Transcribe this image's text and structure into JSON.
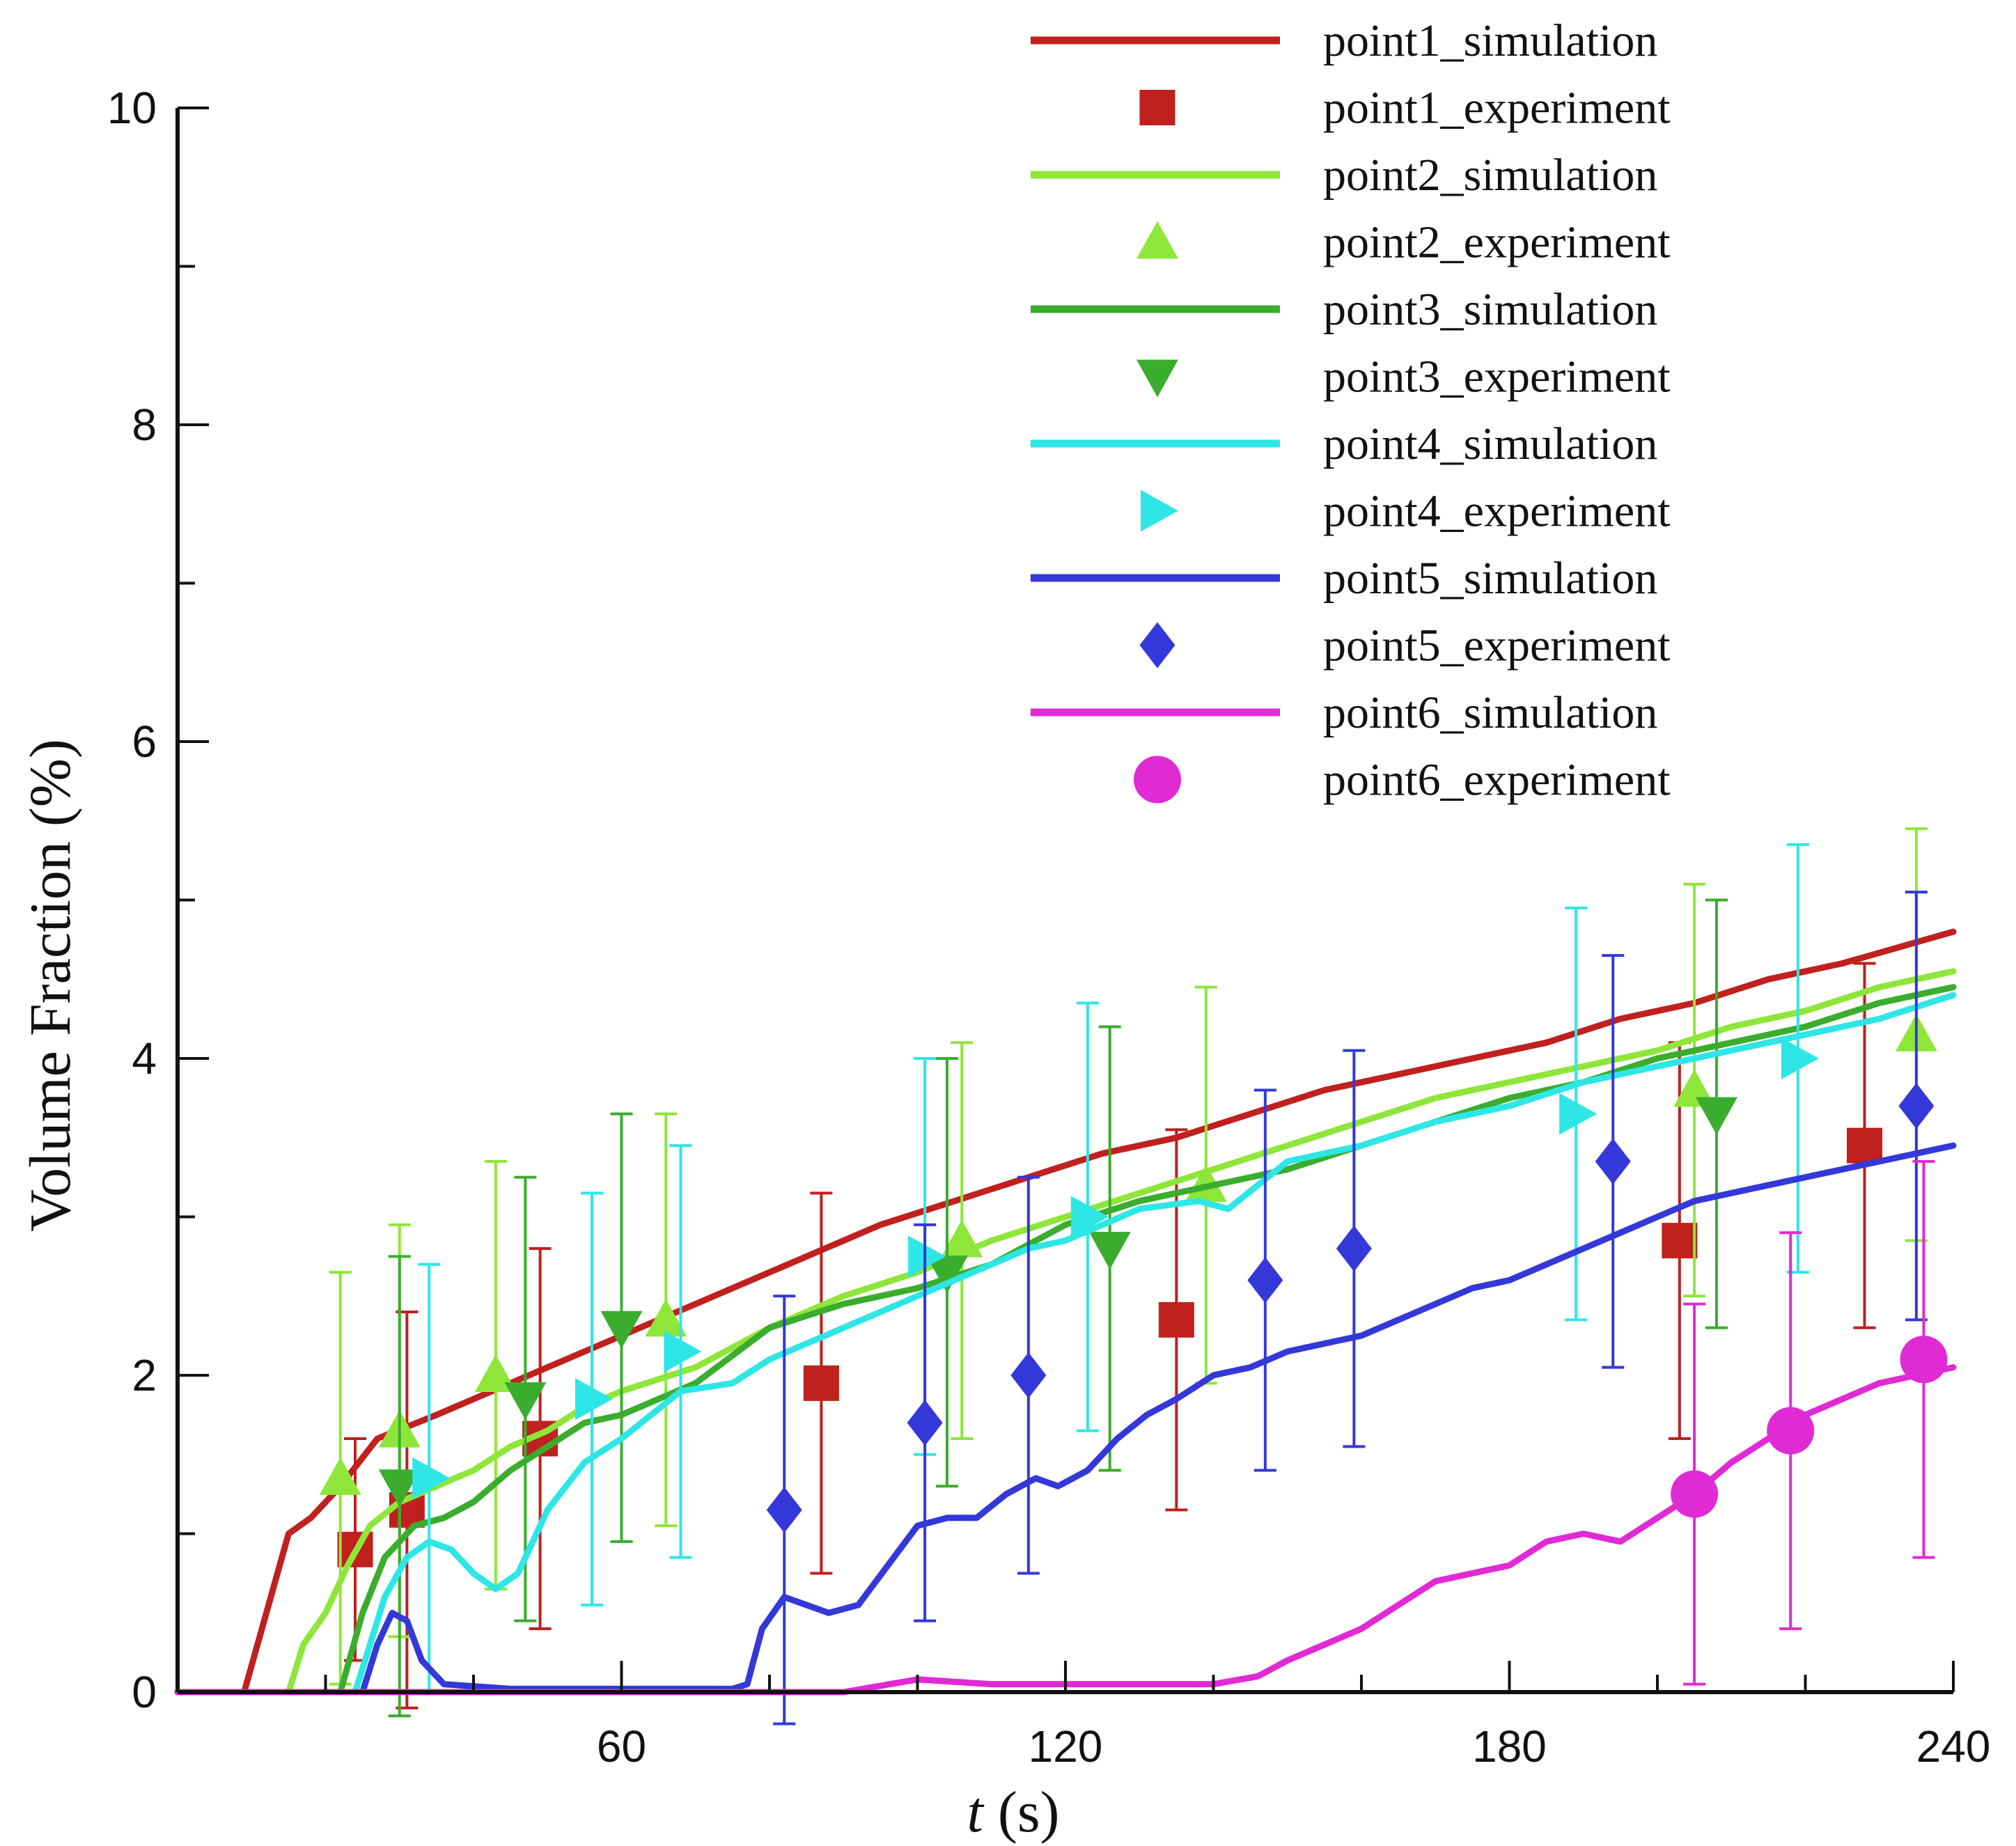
{
  "chart_data": {
    "type": "line",
    "title": "",
    "xlabel_var": "t",
    "xlabel_unit": " (s)",
    "ylabel": "Volume Fraction (%)",
    "xlim": [
      0,
      240
    ],
    "ylim": [
      0,
      10
    ],
    "x_ticks": [
      60,
      120,
      180,
      240
    ],
    "y_ticks": [
      0,
      2,
      4,
      6,
      8,
      10
    ],
    "legend_position": "top-right",
    "series": [
      {
        "name": "point1_simulation",
        "kind": "line",
        "color": "#c0201e",
        "points": [
          [
            0,
            0
          ],
          [
            9,
            0
          ],
          [
            12,
            0.5
          ],
          [
            15,
            1.0
          ],
          [
            18,
            1.1
          ],
          [
            22,
            1.3
          ],
          [
            27,
            1.6
          ],
          [
            35,
            1.75
          ],
          [
            45,
            1.95
          ],
          [
            55,
            2.15
          ],
          [
            65,
            2.35
          ],
          [
            75,
            2.55
          ],
          [
            85,
            2.75
          ],
          [
            95,
            2.95
          ],
          [
            105,
            3.1
          ],
          [
            115,
            3.25
          ],
          [
            125,
            3.4
          ],
          [
            135,
            3.5
          ],
          [
            145,
            3.65
          ],
          [
            155,
            3.8
          ],
          [
            165,
            3.9
          ],
          [
            175,
            4.0
          ],
          [
            185,
            4.1
          ],
          [
            195,
            4.25
          ],
          [
            205,
            4.35
          ],
          [
            215,
            4.5
          ],
          [
            225,
            4.6
          ],
          [
            240,
            4.8
          ]
        ]
      },
      {
        "name": "point1_experiment",
        "kind": "marker",
        "marker": "square",
        "color": "#c0201e",
        "points": [
          [
            24,
            0.9,
            0.7
          ],
          [
            31,
            1.15,
            1.25
          ],
          [
            49,
            1.6,
            1.2
          ],
          [
            87,
            1.95,
            1.2
          ],
          [
            135,
            2.35,
            1.2
          ],
          [
            203,
            2.85,
            1.25
          ],
          [
            228,
            3.45,
            1.15
          ]
        ]
      },
      {
        "name": "point2_simulation",
        "kind": "line",
        "color": "#8ee63a",
        "points": [
          [
            0,
            0
          ],
          [
            15,
            0
          ],
          [
            17,
            0.3
          ],
          [
            20,
            0.5
          ],
          [
            23,
            0.8
          ],
          [
            26,
            1.05
          ],
          [
            30,
            1.2
          ],
          [
            35,
            1.3
          ],
          [
            40,
            1.4
          ],
          [
            45,
            1.55
          ],
          [
            50,
            1.65
          ],
          [
            55,
            1.8
          ],
          [
            60,
            1.9
          ],
          [
            70,
            2.05
          ],
          [
            80,
            2.3
          ],
          [
            90,
            2.5
          ],
          [
            100,
            2.65
          ],
          [
            110,
            2.85
          ],
          [
            120,
            3.0
          ],
          [
            130,
            3.15
          ],
          [
            140,
            3.3
          ],
          [
            150,
            3.45
          ],
          [
            160,
            3.6
          ],
          [
            170,
            3.75
          ],
          [
            180,
            3.85
          ],
          [
            190,
            3.95
          ],
          [
            200,
            4.05
          ],
          [
            210,
            4.2
          ],
          [
            220,
            4.3
          ],
          [
            230,
            4.45
          ],
          [
            240,
            4.55
          ]
        ]
      },
      {
        "name": "point2_experiment",
        "kind": "marker",
        "marker": "triangle-up",
        "color": "#8ee63a",
        "points": [
          [
            22,
            1.35,
            1.3
          ],
          [
            30,
            1.65,
            1.3
          ],
          [
            43,
            2.0,
            1.35
          ],
          [
            66,
            2.35,
            1.3
          ],
          [
            106,
            2.85,
            1.25
          ],
          [
            139,
            3.2,
            1.25
          ],
          [
            205,
            3.8,
            1.3
          ],
          [
            235,
            4.15,
            1.3
          ]
        ]
      },
      {
        "name": "point3_simulation",
        "kind": "line",
        "color": "#3aad2e",
        "points": [
          [
            0,
            0
          ],
          [
            22,
            0
          ],
          [
            25,
            0.5
          ],
          [
            28,
            0.85
          ],
          [
            32,
            1.05
          ],
          [
            36,
            1.1
          ],
          [
            40,
            1.2
          ],
          [
            45,
            1.4
          ],
          [
            50,
            1.55
          ],
          [
            55,
            1.7
          ],
          [
            60,
            1.75
          ],
          [
            65,
            1.85
          ],
          [
            70,
            1.95
          ],
          [
            80,
            2.3
          ],
          [
            90,
            2.45
          ],
          [
            100,
            2.55
          ],
          [
            110,
            2.7
          ],
          [
            120,
            2.95
          ],
          [
            130,
            3.1
          ],
          [
            140,
            3.2
          ],
          [
            150,
            3.3
          ],
          [
            160,
            3.45
          ],
          [
            170,
            3.6
          ],
          [
            180,
            3.75
          ],
          [
            190,
            3.85
          ],
          [
            200,
            4.0
          ],
          [
            210,
            4.1
          ],
          [
            220,
            4.2
          ],
          [
            230,
            4.35
          ],
          [
            240,
            4.45
          ]
        ]
      },
      {
        "name": "point3_experiment",
        "kind": "marker",
        "marker": "triangle-down",
        "color": "#3aad2e",
        "points": [
          [
            30,
            1.3,
            1.45
          ],
          [
            47,
            1.85,
            1.4
          ],
          [
            60,
            2.3,
            1.35
          ],
          [
            104,
            2.65,
            1.35
          ],
          [
            126,
            2.8,
            1.4
          ],
          [
            208,
            3.65,
            1.35
          ]
        ]
      },
      {
        "name": "point4_simulation",
        "kind": "line",
        "color": "#2ee6e6",
        "points": [
          [
            0,
            0
          ],
          [
            24,
            0
          ],
          [
            26,
            0.3
          ],
          [
            28,
            0.6
          ],
          [
            31,
            0.85
          ],
          [
            34,
            0.95
          ],
          [
            37,
            0.9
          ],
          [
            40,
            0.75
          ],
          [
            43,
            0.65
          ],
          [
            46,
            0.75
          ],
          [
            50,
            1.15
          ],
          [
            55,
            1.45
          ],
          [
            60,
            1.6
          ],
          [
            64,
            1.75
          ],
          [
            68,
            1.9
          ],
          [
            75,
            1.95
          ],
          [
            80,
            2.1
          ],
          [
            90,
            2.3
          ],
          [
            100,
            2.5
          ],
          [
            105,
            2.6
          ],
          [
            115,
            2.8
          ],
          [
            120,
            2.85
          ],
          [
            130,
            3.05
          ],
          [
            138,
            3.1
          ],
          [
            142,
            3.05
          ],
          [
            150,
            3.35
          ],
          [
            160,
            3.45
          ],
          [
            170,
            3.6
          ],
          [
            180,
            3.7
          ],
          [
            190,
            3.85
          ],
          [
            200,
            3.95
          ],
          [
            210,
            4.05
          ],
          [
            220,
            4.15
          ],
          [
            230,
            4.25
          ],
          [
            240,
            4.4
          ]
        ]
      },
      {
        "name": "point4_experiment",
        "kind": "marker",
        "marker": "triangle-right",
        "color": "#2ee6e6",
        "points": [
          [
            34,
            1.35,
            1.35
          ],
          [
            56,
            1.85,
            1.3
          ],
          [
            68,
            2.15,
            1.3
          ],
          [
            101,
            2.75,
            1.25
          ],
          [
            123,
            3.0,
            1.35
          ],
          [
            189,
            3.65,
            1.3
          ],
          [
            219,
            4.0,
            1.35
          ]
        ]
      },
      {
        "name": "point5_simulation",
        "kind": "line",
        "color": "#3438d8",
        "points": [
          [
            0,
            0
          ],
          [
            25,
            0
          ],
          [
            27,
            0.3
          ],
          [
            29,
            0.5
          ],
          [
            31,
            0.45
          ],
          [
            33,
            0.2
          ],
          [
            36,
            0.05
          ],
          [
            45,
            0.02
          ],
          [
            60,
            0.02
          ],
          [
            75,
            0.02
          ],
          [
            77,
            0.05
          ],
          [
            79,
            0.4
          ],
          [
            82,
            0.6
          ],
          [
            85,
            0.55
          ],
          [
            88,
            0.5
          ],
          [
            92,
            0.55
          ],
          [
            96,
            0.8
          ],
          [
            100,
            1.05
          ],
          [
            104,
            1.1
          ],
          [
            108,
            1.1
          ],
          [
            112,
            1.25
          ],
          [
            116,
            1.35
          ],
          [
            119,
            1.3
          ],
          [
            123,
            1.4
          ],
          [
            127,
            1.6
          ],
          [
            131,
            1.75
          ],
          [
            135,
            1.85
          ],
          [
            140,
            2.0
          ],
          [
            145,
            2.05
          ],
          [
            150,
            2.15
          ],
          [
            155,
            2.2
          ],
          [
            160,
            2.25
          ],
          [
            165,
            2.35
          ],
          [
            170,
            2.45
          ],
          [
            175,
            2.55
          ],
          [
            180,
            2.6
          ],
          [
            185,
            2.7
          ],
          [
            190,
            2.8
          ],
          [
            195,
            2.9
          ],
          [
            200,
            3.0
          ],
          [
            205,
            3.1
          ],
          [
            210,
            3.15
          ],
          [
            220,
            3.25
          ],
          [
            230,
            3.35
          ],
          [
            240,
            3.45
          ]
        ]
      },
      {
        "name": "point5_experiment",
        "kind": "marker",
        "marker": "diamond",
        "color": "#3438d8",
        "points": [
          [
            82,
            1.15,
            1.35
          ],
          [
            101,
            1.7,
            1.25
          ],
          [
            115,
            2.0,
            1.25
          ],
          [
            147,
            2.6,
            1.2
          ],
          [
            159,
            2.8,
            1.25
          ],
          [
            194,
            3.35,
            1.3
          ],
          [
            235,
            3.7,
            1.35
          ]
        ]
      },
      {
        "name": "point6_simulation",
        "kind": "line",
        "color": "#e02ad4",
        "points": [
          [
            0,
            0
          ],
          [
            70,
            0
          ],
          [
            90,
            0.0
          ],
          [
            100,
            0.08
          ],
          [
            110,
            0.05
          ],
          [
            120,
            0.05
          ],
          [
            130,
            0.05
          ],
          [
            140,
            0.05
          ],
          [
            146,
            0.1
          ],
          [
            150,
            0.2
          ],
          [
            155,
            0.3
          ],
          [
            160,
            0.4
          ],
          [
            165,
            0.55
          ],
          [
            170,
            0.7
          ],
          [
            175,
            0.75
          ],
          [
            180,
            0.8
          ],
          [
            185,
            0.95
          ],
          [
            190,
            1.0
          ],
          [
            195,
            0.95
          ],
          [
            200,
            1.1
          ],
          [
            205,
            1.25
          ],
          [
            210,
            1.45
          ],
          [
            215,
            1.6
          ],
          [
            220,
            1.75
          ],
          [
            225,
            1.85
          ],
          [
            230,
            1.95
          ],
          [
            240,
            2.05
          ]
        ]
      },
      {
        "name": "point6_experiment",
        "kind": "marker",
        "marker": "circle",
        "color": "#e02ad4",
        "points": [
          [
            205,
            1.25,
            1.2
          ],
          [
            218,
            1.65,
            1.25
          ],
          [
            236,
            2.1,
            1.25
          ]
        ]
      }
    ]
  }
}
